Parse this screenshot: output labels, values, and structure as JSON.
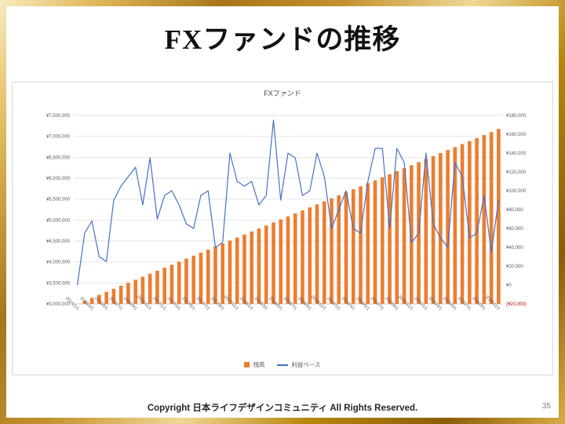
{
  "slide": {
    "title": "FXファンドの推移",
    "footer": "Copyright 日本ライフデザインコミュニティ All Rights Reserved.",
    "page_number": "35"
  },
  "chart_data": {
    "type": "combo-bar-line",
    "title": "FXファンド",
    "grid": true,
    "legend_position": "bottom",
    "legend": [
      {
        "label": "残高",
        "color": "#ED7D31",
        "marker": "bar"
      },
      {
        "label": "利益ベース",
        "color": "#4472C4",
        "marker": "line"
      }
    ],
    "categories": [
      "2016/1/1",
      "2016/2/1",
      "2016/3/1",
      "2016/4/1",
      "2016/5/1",
      "2016/6/1",
      "2016/7/1",
      "2016/8/1",
      "2016/9/1",
      "2016/10/1",
      "2016/11/1",
      "2016/12/1",
      "2017/1/1",
      "2017/2/1",
      "2017/3/1",
      "2017/4/1",
      "2017/5/1",
      "2017/6/1",
      "2017/7/1",
      "2017/8/1",
      "2017/9/1",
      "2017/10/1",
      "2017/11/1",
      "2017/12/1",
      "2018/1/1",
      "2018/2/1",
      "2018/3/1",
      "2018/4/1",
      "2018/5/1",
      "2018/6/1",
      "2018/7/1",
      "2018/8/1",
      "2018/9/1",
      "2018/10/1",
      "2018/11/1",
      "2018/12/1",
      "2019/1/1",
      "2019/2/1",
      "2019/3/1",
      "2019/4/1",
      "2019/5/1",
      "2019/6/1",
      "2019/7/1",
      "2019/8/1",
      "2019/9/1",
      "2019/10/1",
      "2019/11/1",
      "2019/12/1",
      "2020/1/1",
      "2020/2/1",
      "2020/3/1",
      "2020/4/1",
      "2020/5/1",
      "2020/6/1",
      "2020/7/1",
      "2020/8/1",
      "2020/9/1",
      "2020/10/1",
      "2020/11/1"
    ],
    "x_label_every": 2,
    "series": [
      {
        "name": "残高",
        "type": "bar",
        "axis": "left",
        "color": "#ED7D31",
        "values": [
          3000000,
          3072000,
          3144000,
          3216000,
          3288000,
          3360000,
          3432000,
          3504000,
          3576000,
          3648000,
          3720000,
          3792000,
          3864000,
          3936000,
          4008000,
          4080000,
          4152000,
          4224000,
          4296000,
          4368000,
          4440000,
          4512000,
          4584000,
          4656000,
          4728000,
          4800000,
          4872000,
          4944000,
          5016000,
          5088000,
          5160000,
          5232000,
          5304000,
          5376000,
          5448000,
          5520000,
          5592000,
          5664000,
          5736000,
          5808000,
          5880000,
          5952000,
          6024000,
          6096000,
          6168000,
          6240000,
          6312000,
          6384000,
          6456000,
          6528000,
          6600000,
          6672000,
          6744000,
          6816000,
          6888000,
          6960000,
          7032000,
          7104000,
          7176000
        ]
      },
      {
        "name": "利益ベース",
        "type": "line",
        "axis": "right",
        "color": "#4472C4",
        "values": [
          0,
          55000,
          68000,
          30000,
          25000,
          90000,
          105000,
          115000,
          125000,
          85000,
          135000,
          70000,
          95000,
          100000,
          85000,
          65000,
          60000,
          95000,
          100000,
          40000,
          45000,
          140000,
          110000,
          105000,
          110000,
          85000,
          95000,
          175000,
          90000,
          140000,
          135000,
          95000,
          100000,
          140000,
          115000,
          60000,
          80000,
          100000,
          60000,
          55000,
          110000,
          145000,
          145000,
          60000,
          145000,
          130000,
          45000,
          55000,
          140000,
          65000,
          50000,
          40000,
          130000,
          115000,
          50000,
          55000,
          95000,
          35000,
          90000
        ]
      }
    ],
    "left_axis": {
      "min": 3000000,
      "max": 7500000,
      "step": 500000,
      "ticks": [
        {
          "value": 3000000,
          "label": "¥3,000,000"
        },
        {
          "value": 3500000,
          "label": "¥3,500,000"
        },
        {
          "value": 4000000,
          "label": "¥4,000,000"
        },
        {
          "value": 4500000,
          "label": "¥4,500,000"
        },
        {
          "value": 5000000,
          "label": "¥5,000,000"
        },
        {
          "value": 5500000,
          "label": "¥5,500,000"
        },
        {
          "value": 6000000,
          "label": "¥6,000,000"
        },
        {
          "value": 6500000,
          "label": "¥6,500,000"
        },
        {
          "value": 7000000,
          "label": "¥7,000,000"
        },
        {
          "value": 7500000,
          "label": "¥7,500,000"
        }
      ]
    },
    "right_axis": {
      "min": -20000,
      "max": 180000,
      "step": 20000,
      "negative_color": "#C00000",
      "ticks": [
        {
          "value": -20000,
          "label": "(¥20,000)",
          "negative": true
        },
        {
          "value": 0,
          "label": "¥0"
        },
        {
          "value": 20000,
          "label": "¥20,000"
        },
        {
          "value": 40000,
          "label": "¥40,000"
        },
        {
          "value": 60000,
          "label": "¥60,000"
        },
        {
          "value": 80000,
          "label": "¥80,000"
        },
        {
          "value": 100000,
          "label": "¥100,000"
        },
        {
          "value": 120000,
          "label": "¥120,000"
        },
        {
          "value": 140000,
          "label": "¥140,000"
        },
        {
          "value": 160000,
          "label": "¥160,000"
        },
        {
          "value": 180000,
          "label": "¥180,000"
        }
      ]
    }
  }
}
